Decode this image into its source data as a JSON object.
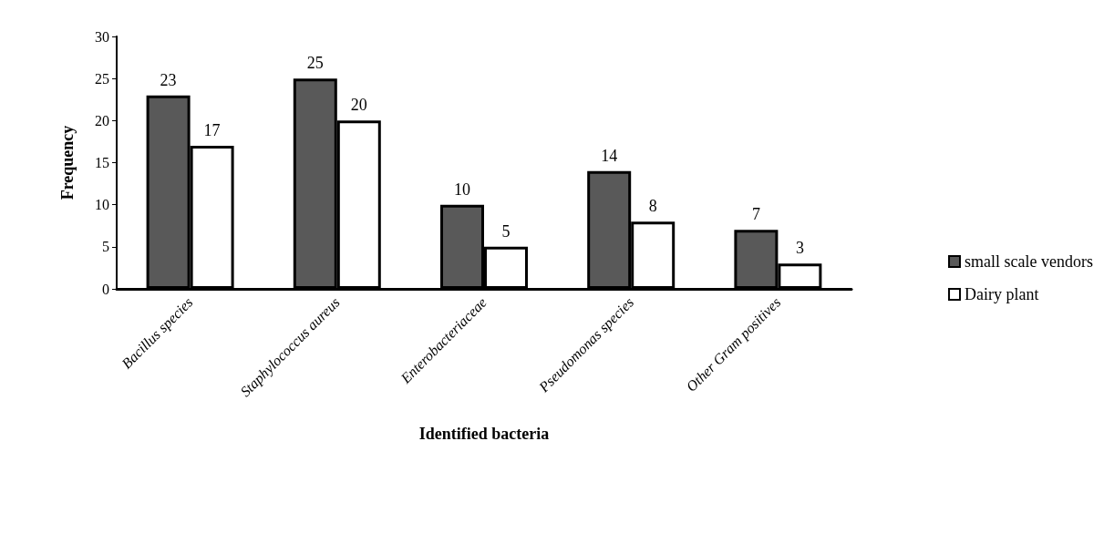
{
  "chart_data": {
    "type": "bar",
    "xlabel": "Identified bacteria",
    "ylabel": "Frequency",
    "categories": [
      "Bacillus species",
      "Staphylococcus aureus",
      "Enterobacteriaceae",
      "Pseudomonas species",
      "Other Gram positives"
    ],
    "series": [
      {
        "name": "small scale vendors",
        "color": "#595959",
        "values": [
          23,
          25,
          10,
          14,
          7
        ]
      },
      {
        "name": "Dairy plant",
        "color": "#ffffff",
        "values": [
          17,
          20,
          5,
          8,
          3
        ]
      }
    ],
    "ylim": [
      0,
      30
    ],
    "yticks": [
      0,
      5,
      10,
      15,
      20,
      25,
      30
    ],
    "grid": false,
    "legend": "right",
    "data_labels": true
  }
}
